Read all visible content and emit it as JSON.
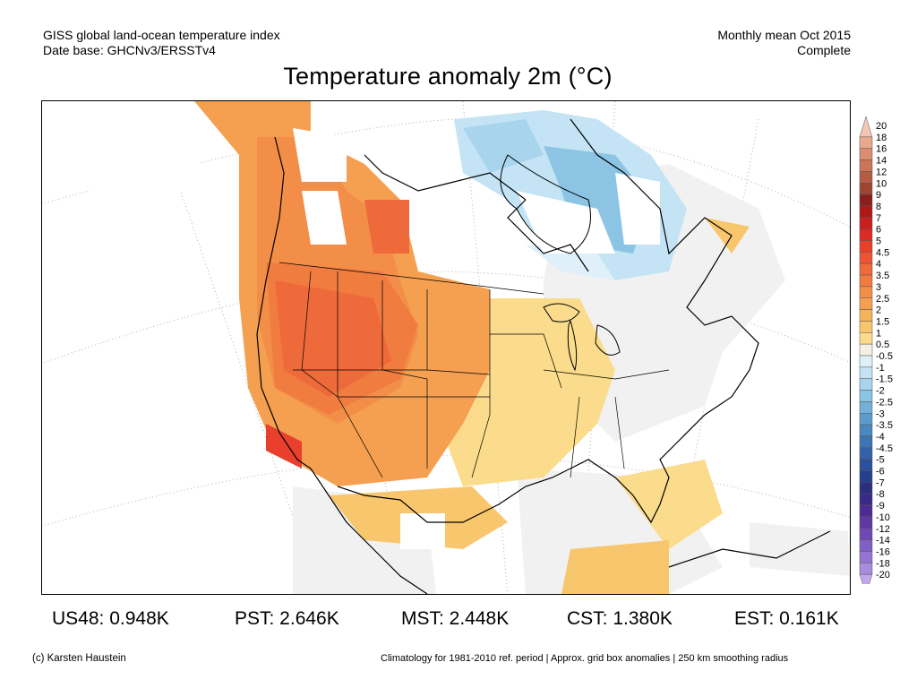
{
  "header": {
    "left_line1": "GISS global land-ocean temperature index",
    "left_line2": "Date base: GHCNv3/ERSSTv4",
    "right_line1": "Monthly mean Oct 2015",
    "right_line2": "Complete"
  },
  "title": "Temperature anomaly 2m (°C)",
  "legend": {
    "labels": [
      "20",
      "18",
      "16",
      "14",
      "12",
      "10",
      "9",
      "8",
      "7",
      "6",
      "5",
      "4.5",
      "4",
      "3.5",
      "3",
      "2.5",
      "2",
      "1.5",
      "1",
      "0.5",
      "-0.5",
      "-1",
      "-1.5",
      "-2",
      "-2.5",
      "-3",
      "-3.5",
      "-4",
      "-4.5",
      "-5",
      "-6",
      "-7",
      "-8",
      "-9",
      "-10",
      "-12",
      "-14",
      "-16",
      "-18",
      "-20"
    ],
    "colors": [
      "#f2c6b4",
      "#e8a98f",
      "#dc8c70",
      "#cc7458",
      "#b65c44",
      "#9e4532",
      "#8a1e1e",
      "#b01818",
      "#c82020",
      "#dc2a24",
      "#e8402c",
      "#ec5434",
      "#ee6a3a",
      "#f07c40",
      "#f28e48",
      "#f4a050",
      "#f6b45a",
      "#f8c66c",
      "#fadc8c",
      "#f6f0e4",
      "#dff0fa",
      "#c4e4f6",
      "#a8d4ee",
      "#8cc4e4",
      "#74b0d8",
      "#5c9ccc",
      "#4a88c0",
      "#3e74b4",
      "#3462a8",
      "#2c509c",
      "#263e8e",
      "#2c2e80",
      "#3a2a88",
      "#4c2c94",
      "#6038a4",
      "#7048b4",
      "#8060c4",
      "#9474d0",
      "#aa8cdc",
      "#c0a8e8"
    ]
  },
  "stats": [
    {
      "label": "US48: 0.948K"
    },
    {
      "label": "PST: 2.646K"
    },
    {
      "label": "MST: 2.448K"
    },
    {
      "label": "CST: 1.380K"
    },
    {
      "label": "EST: 0.161K"
    }
  ],
  "footer": {
    "left": "(c) Karsten Haustein",
    "right": "Climatology for 1981-2010 ref. period | Approx. grid box anomalies | 250 km smoothing radius"
  }
}
